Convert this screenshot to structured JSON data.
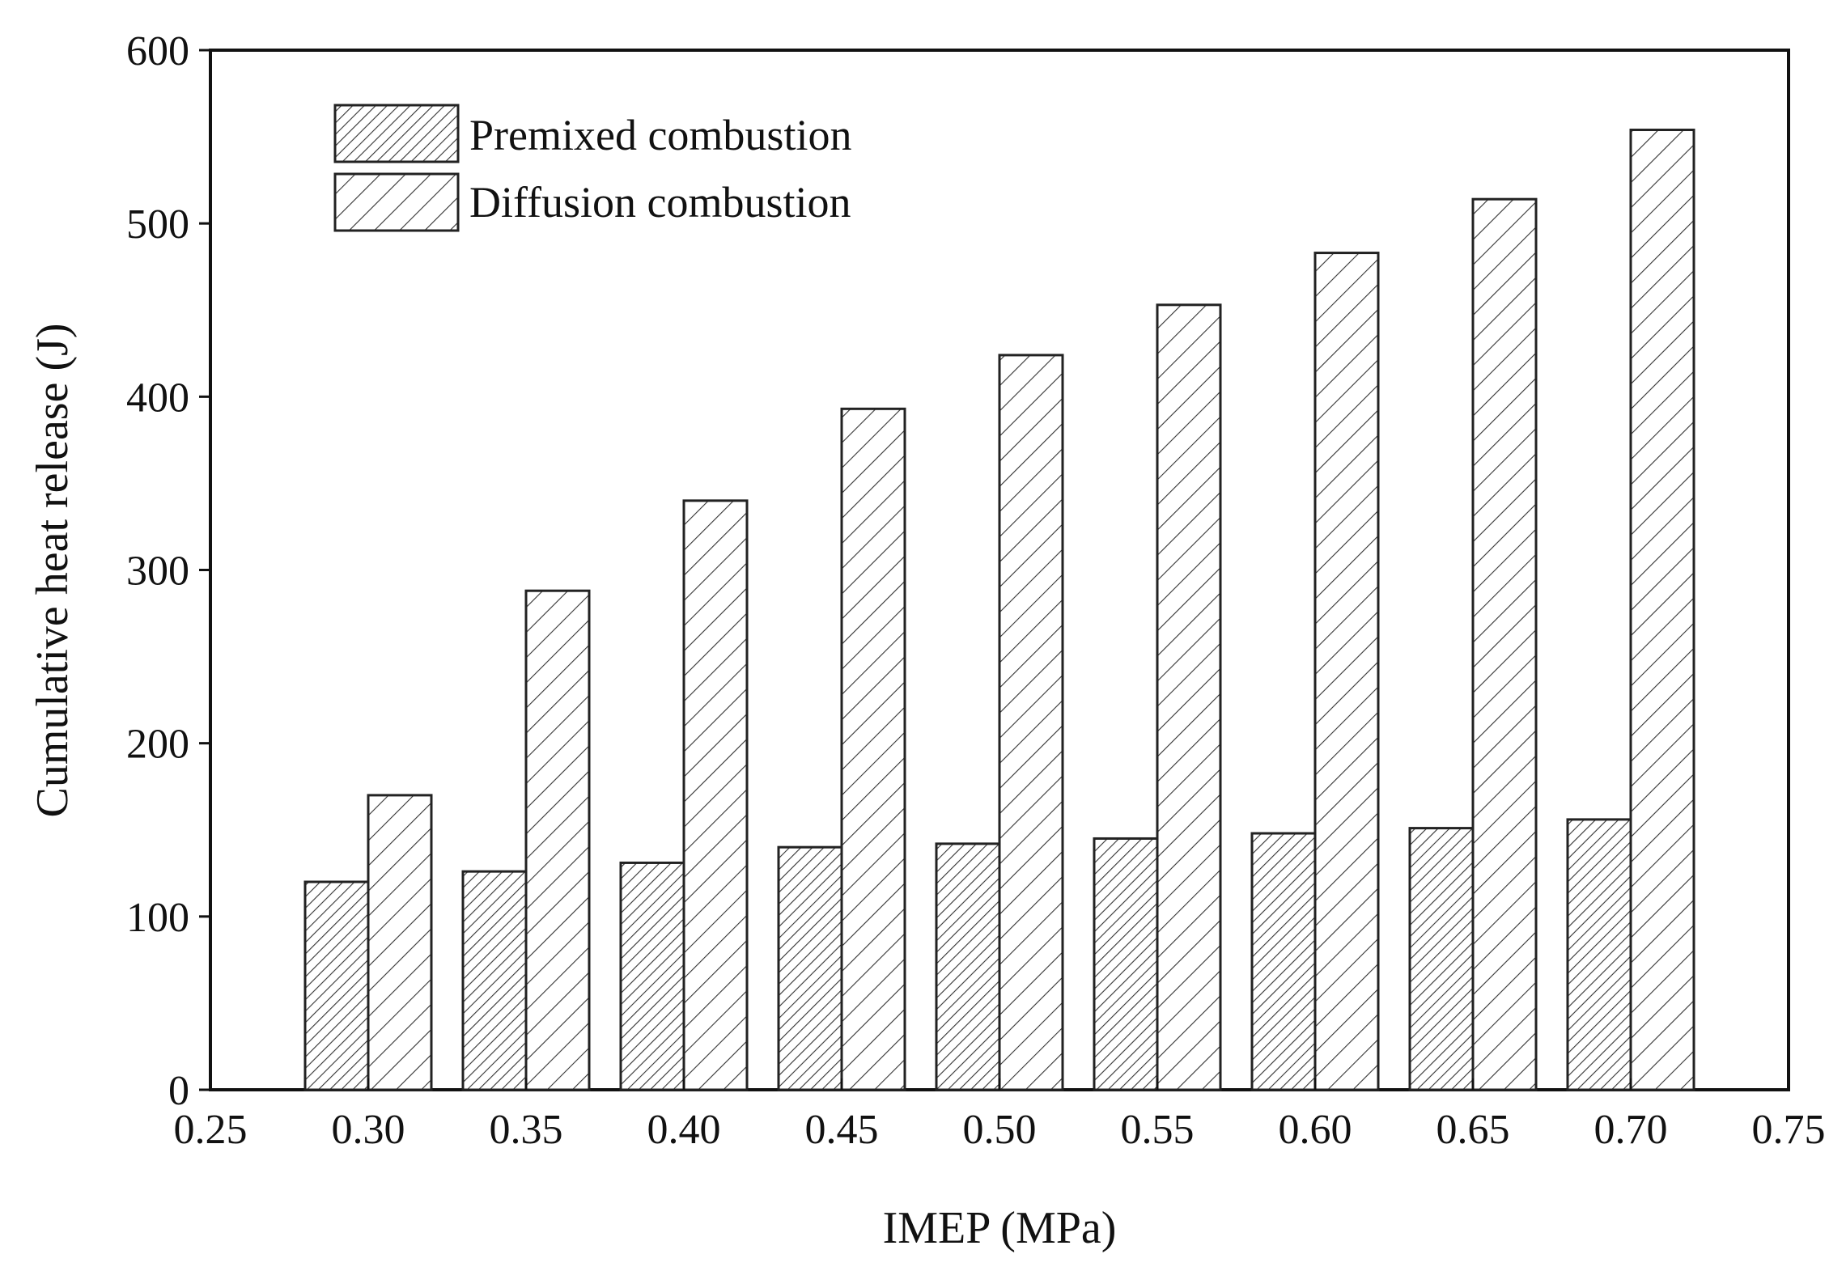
{
  "chart_data": {
    "type": "bar",
    "title": "",
    "xlabel": "IMEP (MPa)",
    "ylabel": "Cumulative heat release (J)",
    "xlim": [
      0.25,
      0.75
    ],
    "ylim": [
      0,
      600
    ],
    "x_ticks": [
      "0.25",
      "0.30",
      "0.35",
      "0.40",
      "0.45",
      "0.50",
      "0.55",
      "0.60",
      "0.65",
      "0.70",
      "0.75"
    ],
    "y_ticks": [
      "0",
      "100",
      "200",
      "300",
      "400",
      "500",
      "600"
    ],
    "grid": false,
    "legend_position": "top-left",
    "categories": [
      0.3,
      0.35,
      0.4,
      0.45,
      0.5,
      0.55,
      0.6,
      0.65,
      0.7
    ],
    "series": [
      {
        "name": "Premixed combustion",
        "pattern": "dense-hatch",
        "values": [
          120,
          126,
          131,
          140,
          142,
          145,
          148,
          151,
          156
        ]
      },
      {
        "name": "Diffusion combustion",
        "pattern": "sparse-hatch",
        "values": [
          170,
          288,
          340,
          393,
          424,
          453,
          483,
          514,
          554
        ]
      }
    ]
  }
}
